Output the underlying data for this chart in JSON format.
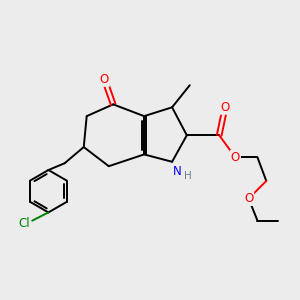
{
  "bg_color": "#ececec",
  "bond_color": "#000000",
  "atom_colors": {
    "O": "#ff0000",
    "N": "#0000ff",
    "Cl": "#008000",
    "C": "#000000"
  },
  "font_size": 8.5,
  "bond_width": 1.4
}
